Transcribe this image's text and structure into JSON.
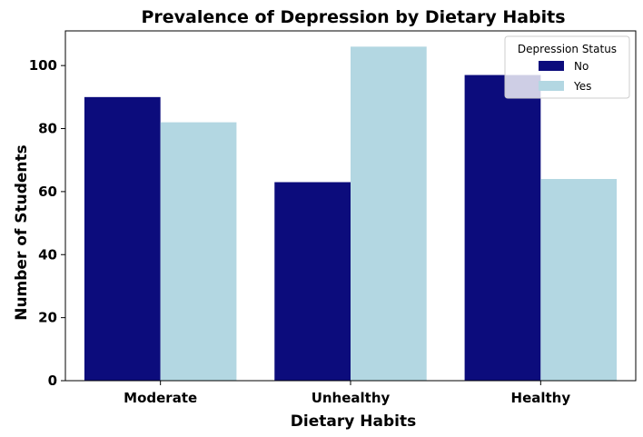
{
  "chart_data": {
    "type": "bar",
    "title": "Prevalence of Depression by Dietary Habits",
    "xlabel": "Dietary Habits",
    "ylabel": "Number of Students",
    "categories": [
      "Moderate",
      "Unhealthy",
      "Healthy"
    ],
    "series": [
      {
        "name": "No",
        "color": "#0c0c7c",
        "values": [
          90,
          63,
          97
        ]
      },
      {
        "name": "Yes",
        "color": "#b3d7e2",
        "values": [
          82,
          106,
          64
        ]
      }
    ],
    "ylim": [
      0,
      111
    ],
    "yticks": [
      "0",
      "20",
      "40",
      "60",
      "80",
      "100"
    ],
    "legend": {
      "title": "Depression Status",
      "placement": "top-right"
    },
    "grid": false
  }
}
